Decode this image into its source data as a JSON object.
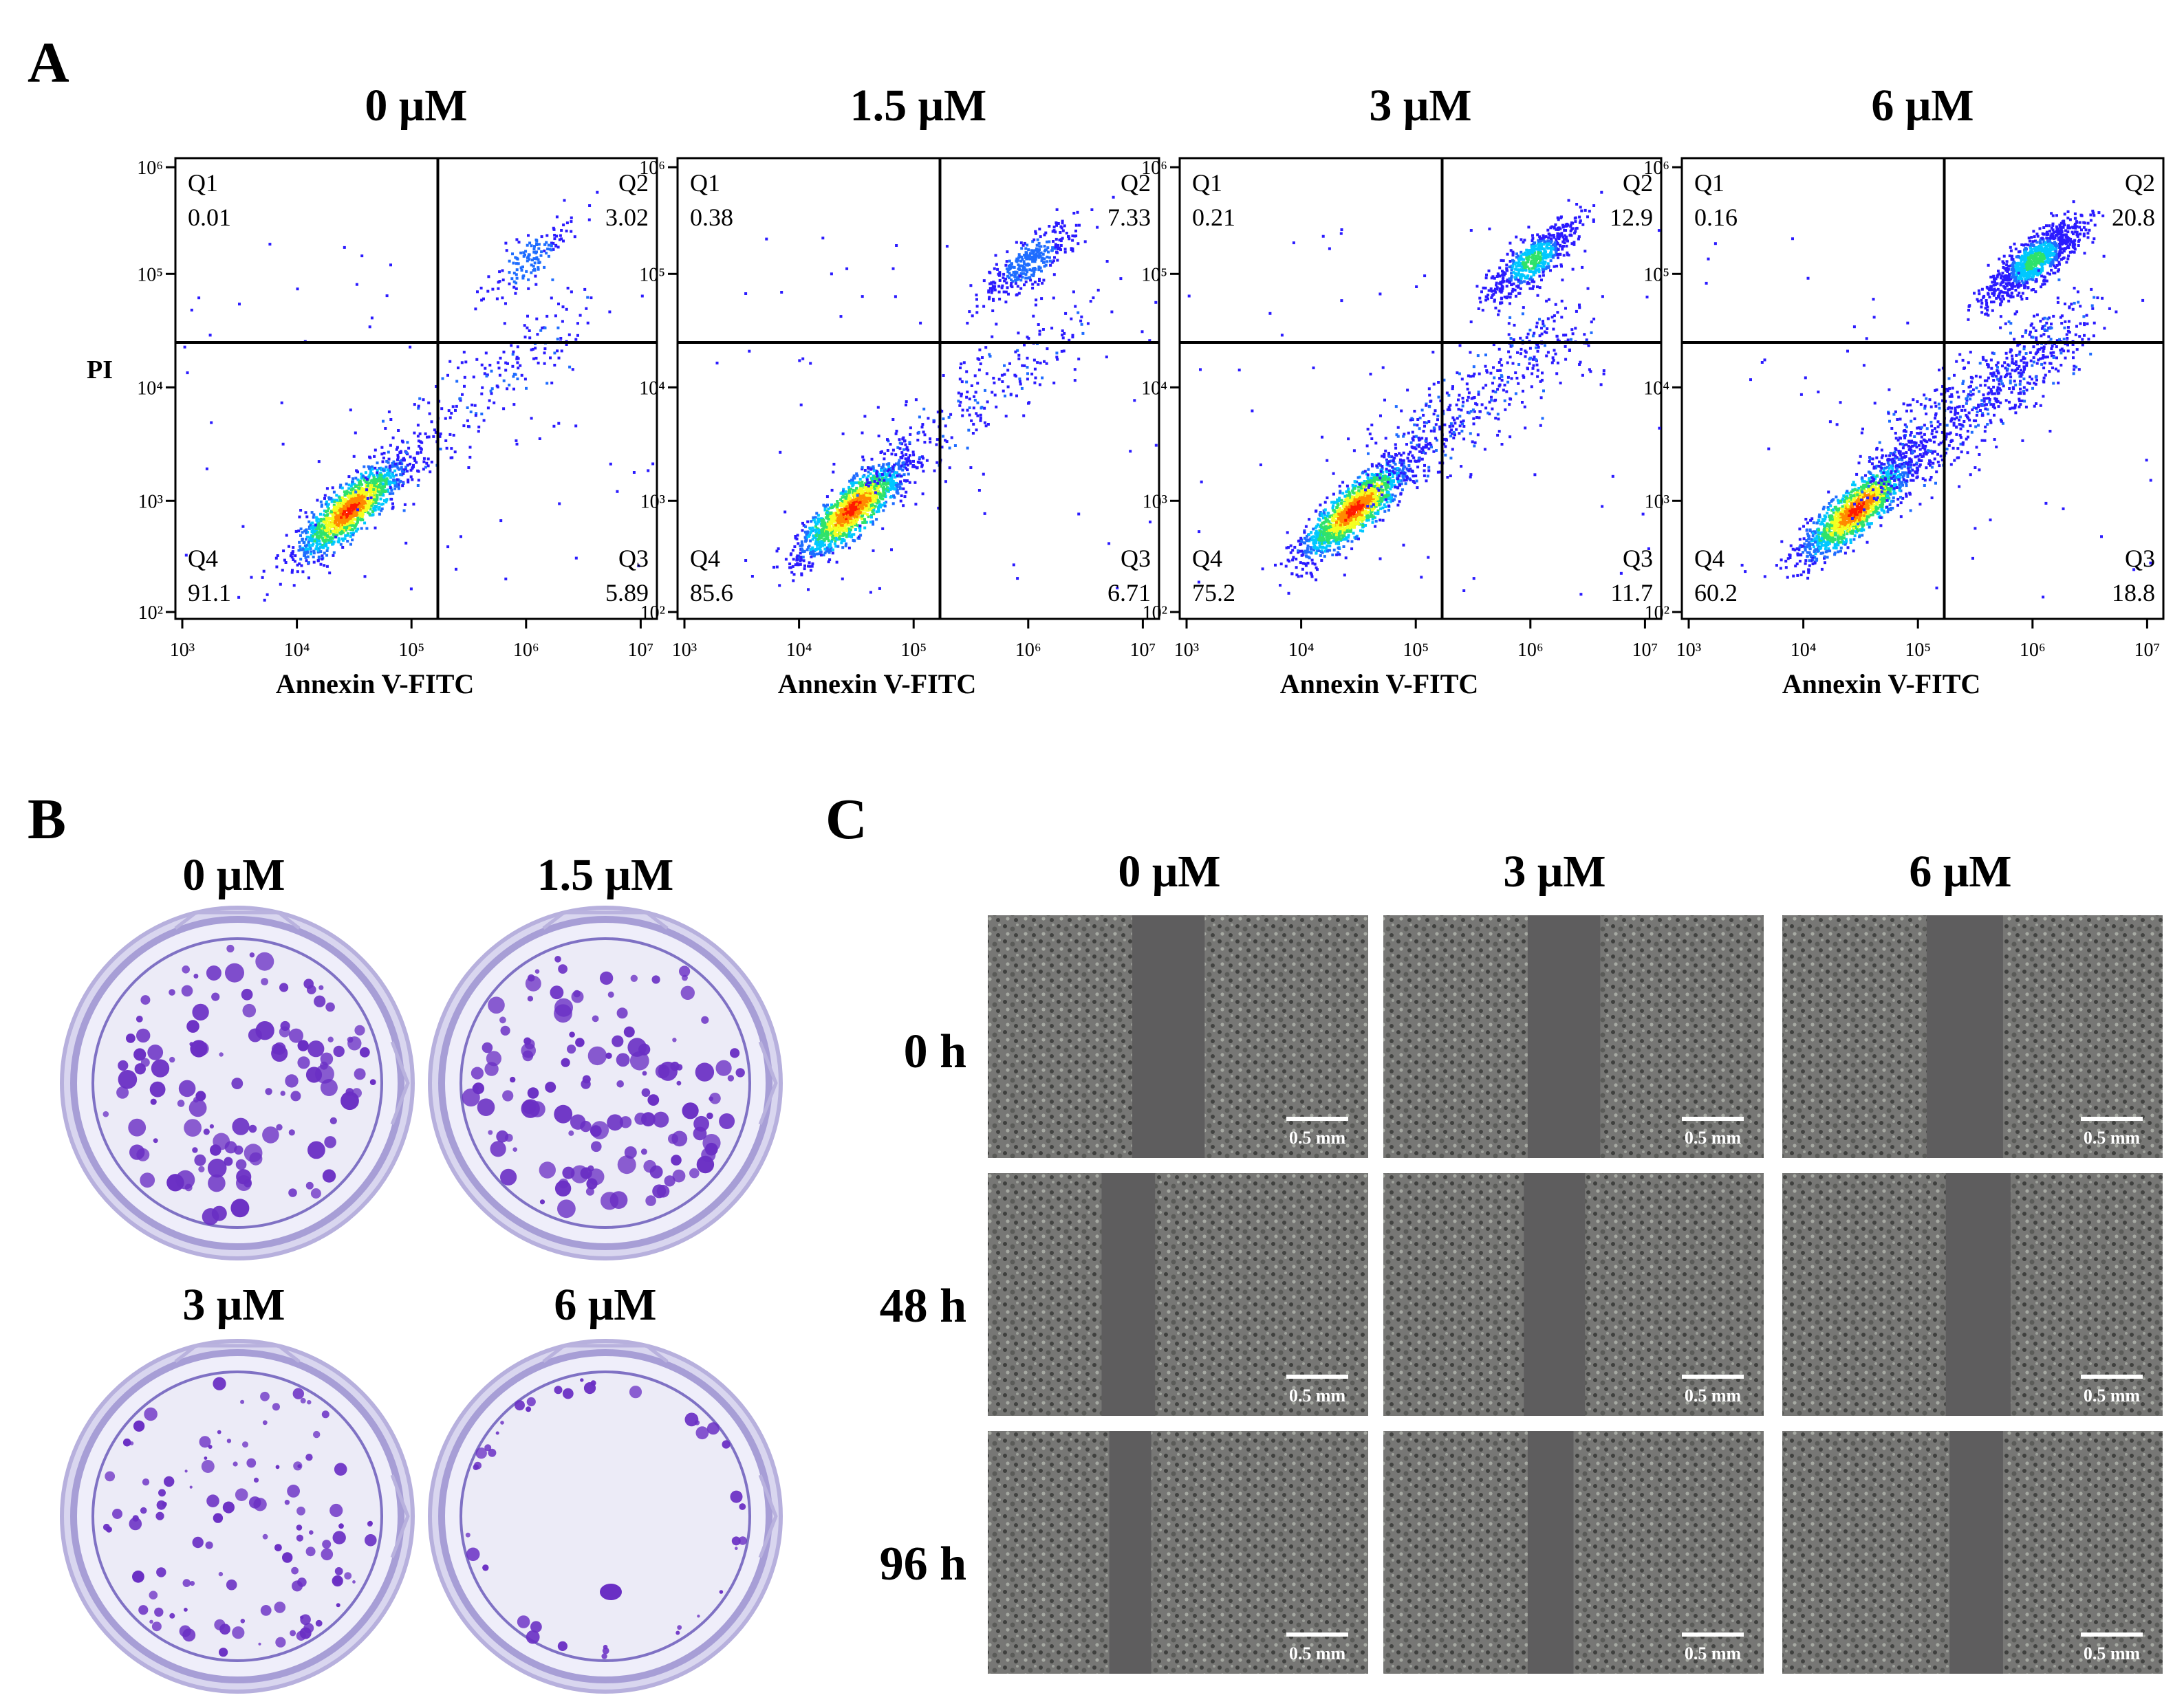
{
  "panels": {
    "A": {
      "letter": "A",
      "y_label": "PI",
      "x_label": "Annexin V-FITC",
      "x_ticks": [
        "10³",
        "10⁴",
        "10⁵",
        "10⁶",
        "10⁷"
      ],
      "y_ticks": [
        "10²",
        "10³",
        "10⁴",
        "10⁵",
        "10⁶"
      ],
      "quadrant_names": [
        "Q1",
        "Q2",
        "Q3",
        "Q4"
      ],
      "plots": [
        {
          "concentration": "0 μM",
          "Q1": "0.01",
          "Q2": "3.02",
          "Q3": "5.89",
          "Q4": "91.1"
        },
        {
          "concentration": "1.5 μM",
          "Q1": "0.38",
          "Q2": "7.33",
          "Q3": "6.71",
          "Q4": "85.6"
        },
        {
          "concentration": "3 μM",
          "Q1": "0.21",
          "Q2": "12.9",
          "Q3": "11.7",
          "Q4": "75.2"
        },
        {
          "concentration": "6 μM",
          "Q1": "0.16",
          "Q2": "20.8",
          "Q3": "18.8",
          "Q4": "60.2"
        }
      ]
    },
    "B": {
      "letter": "B",
      "wells": [
        {
          "concentration": "0 μM",
          "colonies": "many"
        },
        {
          "concentration": "1.5 μM",
          "colonies": "many"
        },
        {
          "concentration": "3 μM",
          "colonies": "moderate"
        },
        {
          "concentration": "6 μM",
          "colonies": "few, at edge"
        }
      ]
    },
    "C": {
      "letter": "C",
      "concentrations": [
        "0 μM",
        "3 μM",
        "6 μM"
      ],
      "times": [
        "0 h",
        "48 h",
        "96 h"
      ],
      "scale_bar": "0.5 mm"
    }
  },
  "colors": {
    "stain": "#6a2fc4",
    "plate_bg": "#ecebf7",
    "micro_bg": "#7b7b79",
    "gap": "#5e5d5e"
  }
}
